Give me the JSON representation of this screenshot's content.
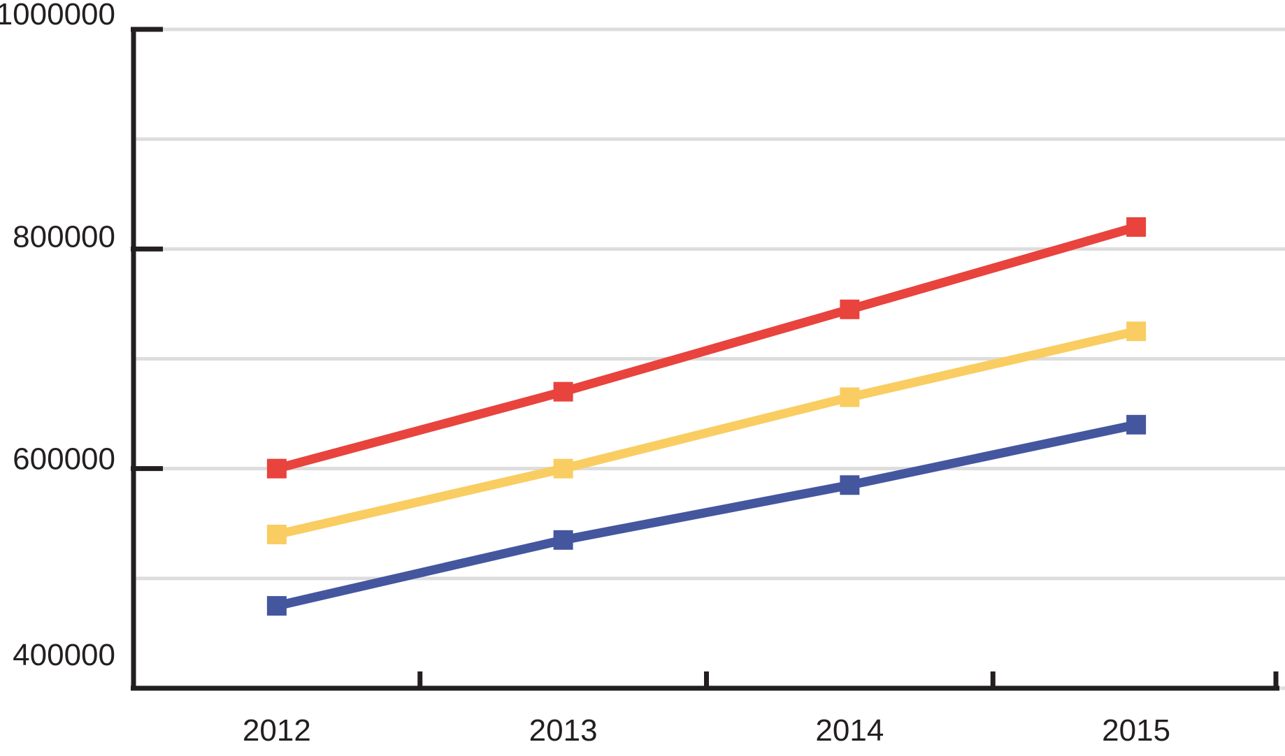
{
  "chart_data": {
    "type": "line",
    "title": "",
    "xlabel": "",
    "ylabel": "",
    "x_categories": [
      "2012",
      "2013",
      "2014",
      "2015"
    ],
    "series": [
      {
        "name": "red-series",
        "color": "#e8433d",
        "values": [
          600000,
          670000,
          745000,
          820000
        ]
      },
      {
        "name": "yellow-series",
        "color": "#f9cd61",
        "values": [
          540000,
          600000,
          665000,
          725000
        ]
      },
      {
        "name": "blue-series",
        "color": "#44569e",
        "values": [
          475000,
          535000,
          585000,
          640000
        ]
      }
    ],
    "ylim": [
      400000,
      1000000
    ],
    "y_ticks": [
      {
        "value": 1000000,
        "label": "1000000"
      },
      {
        "value": 800000,
        "label": "800000"
      },
      {
        "value": 600000,
        "label": "600000"
      },
      {
        "value": 400000,
        "label": "400000"
      }
    ],
    "gridline_step": 100000,
    "grid": "horizontal-only",
    "legend": "none",
    "marker_shape": "square",
    "colors": {
      "axis": "#231f20",
      "text": "#231f20",
      "gridline": "#dddddd",
      "background": "#ffffff"
    }
  }
}
